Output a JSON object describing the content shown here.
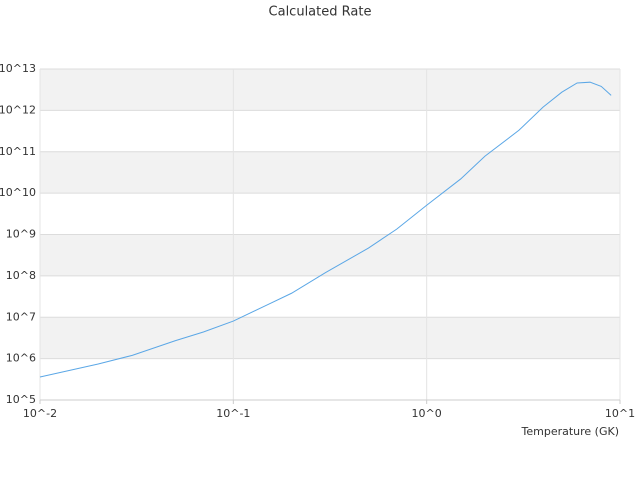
{
  "chart_data": {
    "type": "line",
    "title": "Calculated Rate",
    "x_label": "Temperature (GK)",
    "x": [
      0.01,
      0.02,
      0.03,
      0.05,
      0.07,
      0.1,
      0.15,
      0.2,
      0.3,
      0.5,
      0.7,
      1,
      1.5,
      2,
      3,
      4,
      5,
      6,
      7,
      8,
      9
    ],
    "series": [
      {
        "color": "#5ba7e6",
        "values": [
          360000,
          740000,
          1200000,
          2700000,
          4400000,
          8100000,
          20000000,
          38000000,
          120000000,
          470000000,
          1350000000,
          5100000000,
          22000000000,
          78000000000,
          330000000000,
          1200000000000,
          2750000000000,
          4600000000000,
          4800000000000,
          3800000000000,
          2300000000000
        ]
      }
    ],
    "xscale": "log",
    "yscale": "log",
    "xlim": [
      0.01,
      10
    ],
    "ylim": [
      100000,
      10000000000000
    ],
    "xticks": [
      {
        "value": 0.01,
        "label": "10^-2"
      },
      {
        "value": 0.1,
        "label": "10^-1"
      },
      {
        "value": 1,
        "label": "10^0"
      },
      {
        "value": 10,
        "label": "10^1"
      }
    ],
    "yticks": [
      {
        "value": 100000,
        "label": "10^5"
      },
      {
        "value": 1000000,
        "label": "10^6"
      },
      {
        "value": 10000000,
        "label": "10^7"
      },
      {
        "value": 100000000,
        "label": "10^8"
      },
      {
        "value": 1000000000,
        "label": "10^9"
      },
      {
        "value": 10000000000,
        "label": "10^10"
      },
      {
        "value": 100000000000,
        "label": "10^11"
      },
      {
        "value": 1000000000000,
        "label": "10^12"
      },
      {
        "value": 10000000000000,
        "label": "10^13"
      }
    ],
    "grid": true
  }
}
